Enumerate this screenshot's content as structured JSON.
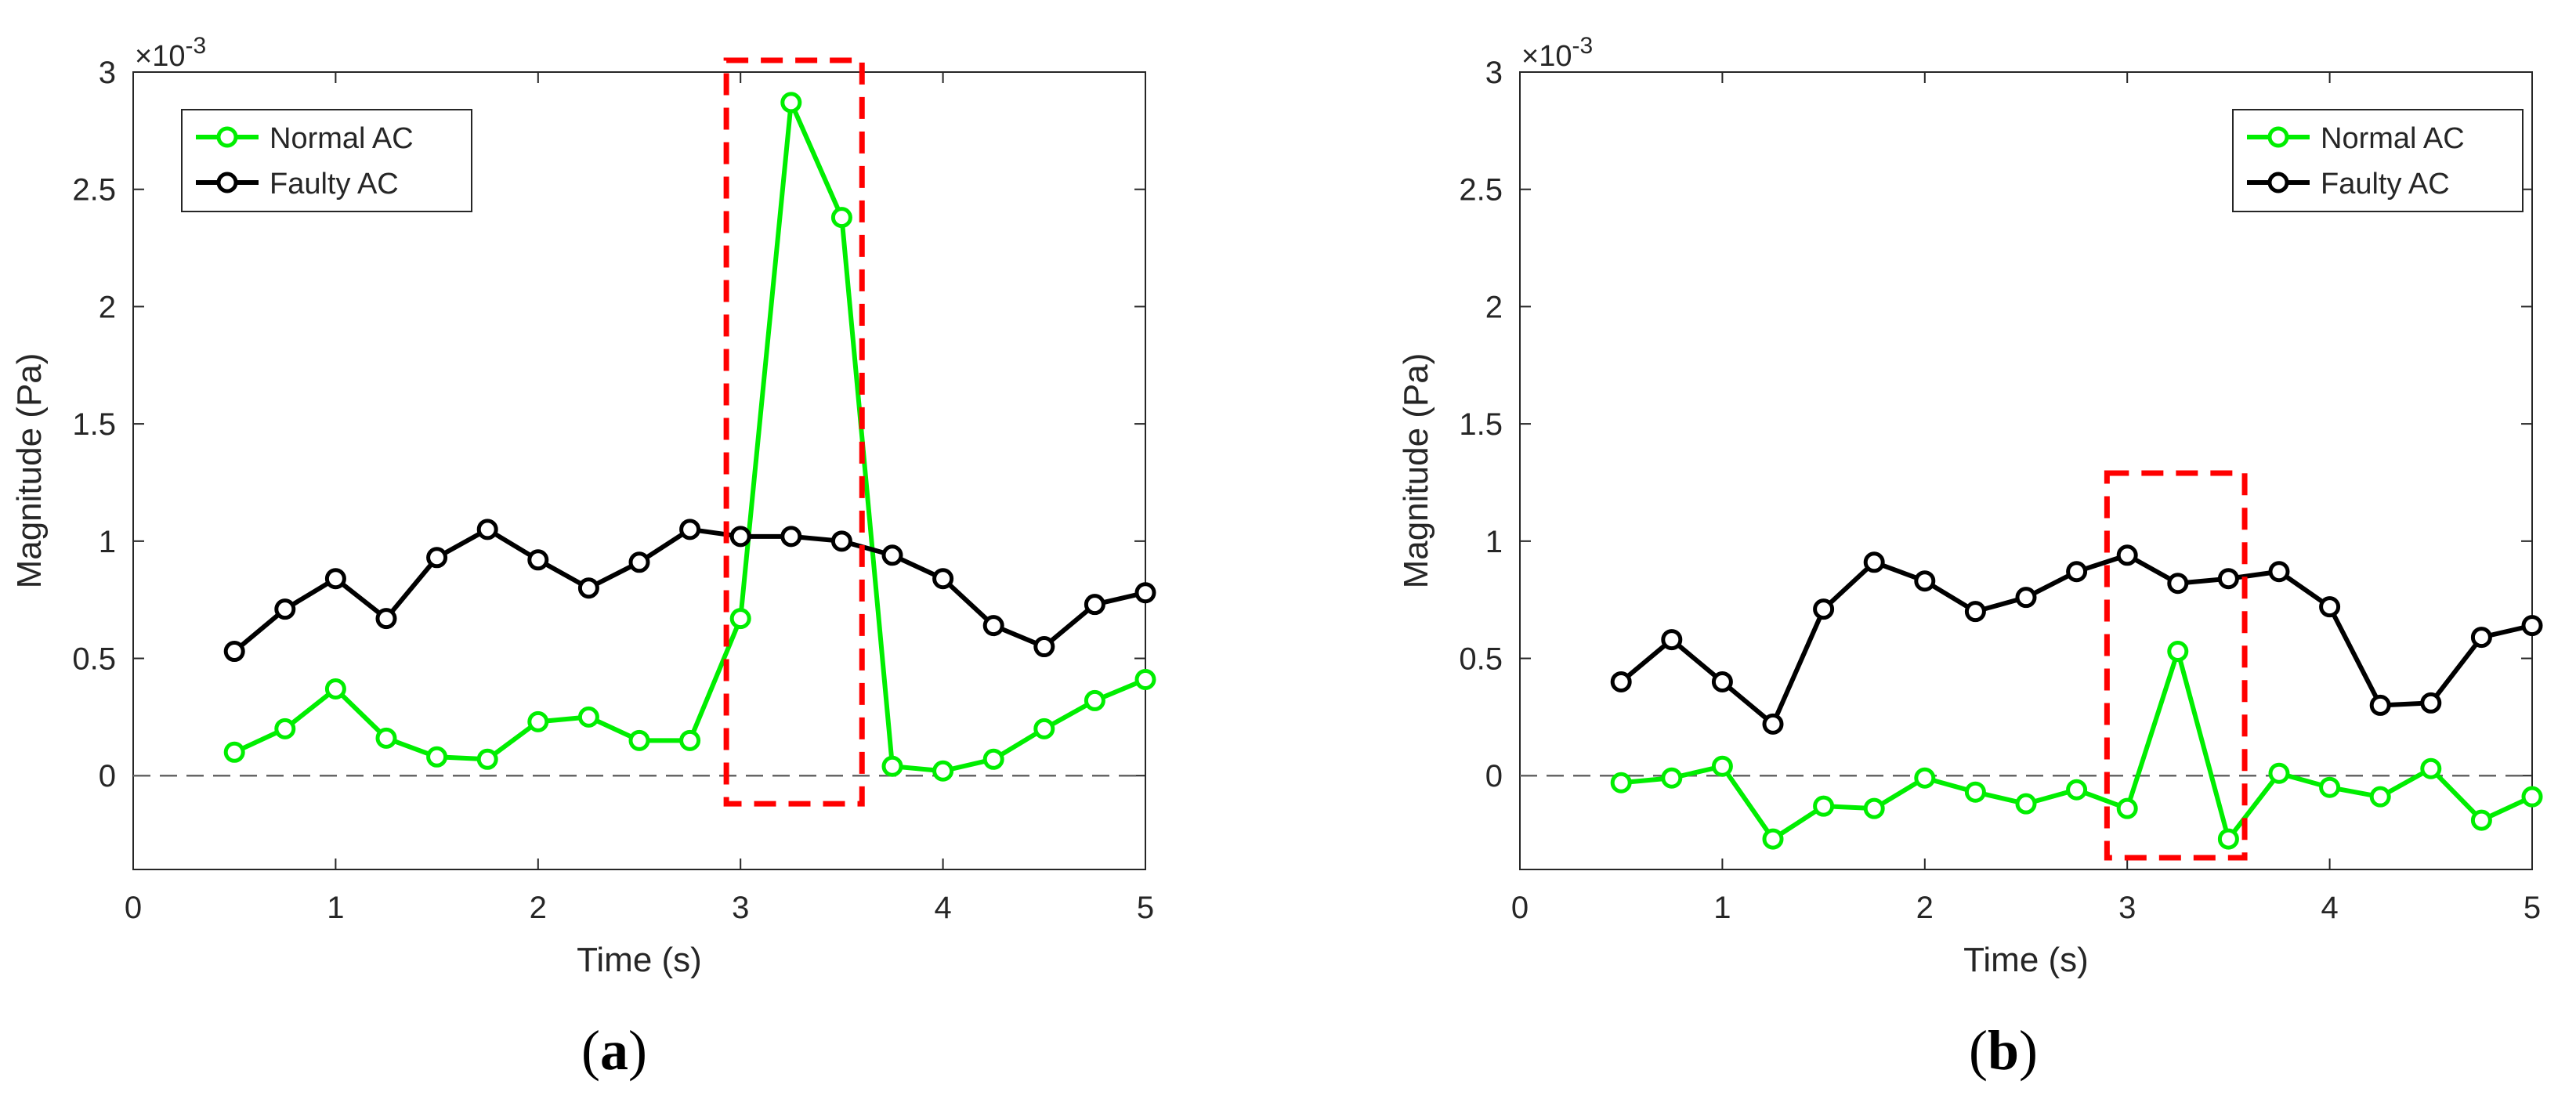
{
  "chart_data": [
    {
      "panel_label": "a",
      "type": "line",
      "xlabel": "Time (s)",
      "ylabel": "Magnitude (Pa)",
      "y_multiplier_base": "×10",
      "y_multiplier_exp": "-3",
      "xlim": [
        0,
        5
      ],
      "ylim": [
        -0.4,
        3
      ],
      "xticks": [
        0,
        1,
        2,
        3,
        4,
        5
      ],
      "xtick_labels": [
        "0",
        "1",
        "2",
        "3",
        "4",
        "5"
      ],
      "yticks": [
        0,
        0.5,
        1,
        1.5,
        2,
        2.5,
        3
      ],
      "ytick_labels": [
        "0",
        "0.5",
        "1",
        "1.5",
        "2",
        "2.5",
        "3"
      ],
      "zero_line": true,
      "legend_position": "top-left",
      "x": [
        0.5,
        0.75,
        1.0,
        1.25,
        1.5,
        1.75,
        2.0,
        2.25,
        2.5,
        2.75,
        3.0,
        3.25,
        3.5,
        3.75,
        4.0,
        4.25,
        4.5,
        4.75,
        5.0
      ],
      "series": [
        {
          "name": "Normal AC",
          "color": "#00ee00",
          "values": [
            0.1,
            0.2,
            0.37,
            0.16,
            0.08,
            0.07,
            0.23,
            0.25,
            0.15,
            0.15,
            0.67,
            2.87,
            2.38,
            0.04,
            0.02,
            0.07,
            0.2,
            0.32,
            0.41
          ]
        },
        {
          "name": "Faulty AC",
          "color": "#000000",
          "values": [
            0.53,
            0.71,
            0.84,
            0.67,
            0.93,
            1.05,
            0.92,
            0.8,
            0.91,
            1.05,
            1.02,
            1.02,
            1.0,
            0.94,
            0.84,
            0.64,
            0.55,
            0.73,
            0.78
          ]
        }
      ],
      "highlight_box": {
        "x": [
          2.93,
          3.6
        ],
        "y": [
          -0.12,
          3.05
        ],
        "color": "#ff0000"
      }
    },
    {
      "panel_label": "b",
      "type": "line",
      "xlabel": "Time (s)",
      "ylabel": "Magnitude (Pa)",
      "y_multiplier_base": "×10",
      "y_multiplier_exp": "-3",
      "xlim": [
        0,
        5
      ],
      "ylim": [
        -0.4,
        3
      ],
      "xticks": [
        0,
        1,
        2,
        3,
        4,
        5
      ],
      "xtick_labels": [
        "0",
        "1",
        "2",
        "3",
        "4",
        "5"
      ],
      "yticks": [
        0,
        0.5,
        1,
        1.5,
        2,
        2.5,
        3
      ],
      "ytick_labels": [
        "0",
        "0.5",
        "1",
        "1.5",
        "2",
        "2.5",
        "3"
      ],
      "zero_line": true,
      "legend_position": "top-right",
      "x": [
        0.5,
        0.75,
        1.0,
        1.25,
        1.5,
        1.75,
        2.0,
        2.25,
        2.5,
        2.75,
        3.0,
        3.25,
        3.5,
        3.75,
        4.0,
        4.25,
        4.5,
        4.75,
        5.0
      ],
      "series": [
        {
          "name": "Normal AC",
          "color": "#00ee00",
          "values": [
            -0.03,
            -0.01,
            0.04,
            -0.27,
            -0.13,
            -0.14,
            -0.01,
            -0.07,
            -0.12,
            -0.06,
            -0.14,
            0.53,
            -0.27,
            0.01,
            -0.05,
            -0.09,
            0.03,
            -0.19,
            -0.09
          ]
        },
        {
          "name": "Faulty AC",
          "color": "#000000",
          "values": [
            0.4,
            0.58,
            0.4,
            0.22,
            0.71,
            0.91,
            0.83,
            0.7,
            0.76,
            0.87,
            0.94,
            0.82,
            0.84,
            0.87,
            0.72,
            0.3,
            0.31,
            0.59,
            0.64
          ]
        }
      ],
      "highlight_box": {
        "x": [
          2.9,
          3.58
        ],
        "y": [
          -0.35,
          1.29
        ],
        "color": "#ff0000"
      }
    }
  ]
}
